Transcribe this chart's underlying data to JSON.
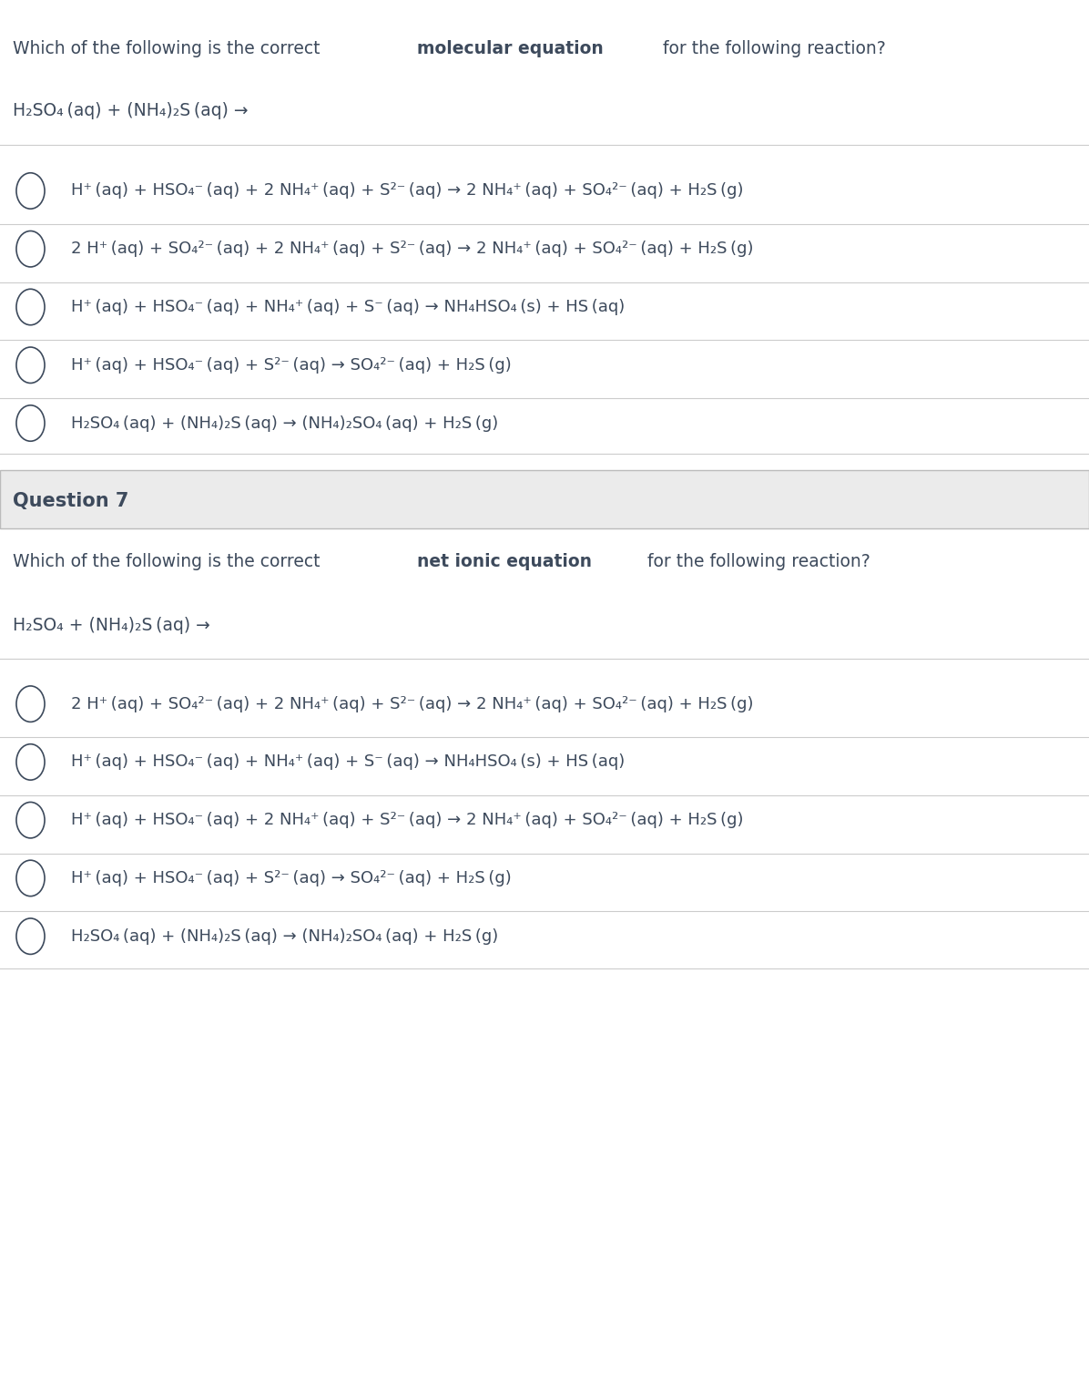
{
  "bg_color": "#ffffff",
  "text_color": "#3d4a5c",
  "question_bg": "#f0f0f0",
  "fig_width": 11.96,
  "fig_height": 15.18,
  "section1_question": "Which of the following is the correct ",
  "section1_bold": "molecular equation",
  "section1_question2": " for the following reaction?",
  "reaction_header": "H₂SO₄ (aq) + (NH₄)₂S (aq) →",
  "mol_options": [
    "H⁺ (aq) + HSO₄⁻ (aq) + 2 NH₄⁺ (aq) + S²⁻ (aq) → 2 NH₄⁺ (aq) + SO₄²⁻ (aq) + H₂S (g)",
    "2 H⁺ (aq) + SO₄²⁻ (aq) + 2 NH₄⁺ (aq) + S²⁻ (aq) → 2 NH₄⁺ (aq) + SO₄²⁻ (aq) + H₂S (g)",
    "H⁺ (aq) + HSO₄⁻ (aq) + NH₄⁺ (aq) + S⁻ (aq) → NH₄HSO₄ (s) + HS (aq)",
    "H⁺ (aq) + HSO₄⁻ (aq) + S²⁻ (aq) → SO₄²⁻ (aq) + H₂S (g)",
    "H₂SO₄ (aq) + (NH₄)₂S (aq) → (NH₄)₂SO₄ (aq) + H₂S (g)"
  ],
  "section2_question": "Which of the following is the correct ",
  "section2_bold": "net ionic equation",
  "section2_question2": " for the following reaction?",
  "reaction_header2": "H₂SO₄ + (NH₄)₂S (aq) →",
  "ionic_options": [
    "2 H⁺ (aq) + SO₄²⁻ (aq) + 2 NH₄⁺ (aq) + S²⁻ (aq) → 2 NH₄⁺ (aq) + SO₄²⁻ (aq) + H₂S (g)",
    "H⁺ (aq) + HSO₄⁻ (aq) + NH₄⁺ (aq) + S⁻ (aq) → NH₄HSO₄ (s) + HS (aq)",
    "H⁺ (aq) + HSO₄⁻ (aq) + 2 NH₄⁺ (aq) + S²⁻ (aq) → 2 NH₄⁺ (aq) + SO₄²⁻ (aq) + H₂S (g)",
    "H⁺ (aq) + HSO₄⁻ (aq) + S²⁻ (aq) → SO₄²⁻ (aq) + H₂S (g)",
    "H₂SO₄ (aq) + (NH₄)₂S (aq) → (NH₄)₂SO₄ (aq) + H₂S (g)"
  ]
}
